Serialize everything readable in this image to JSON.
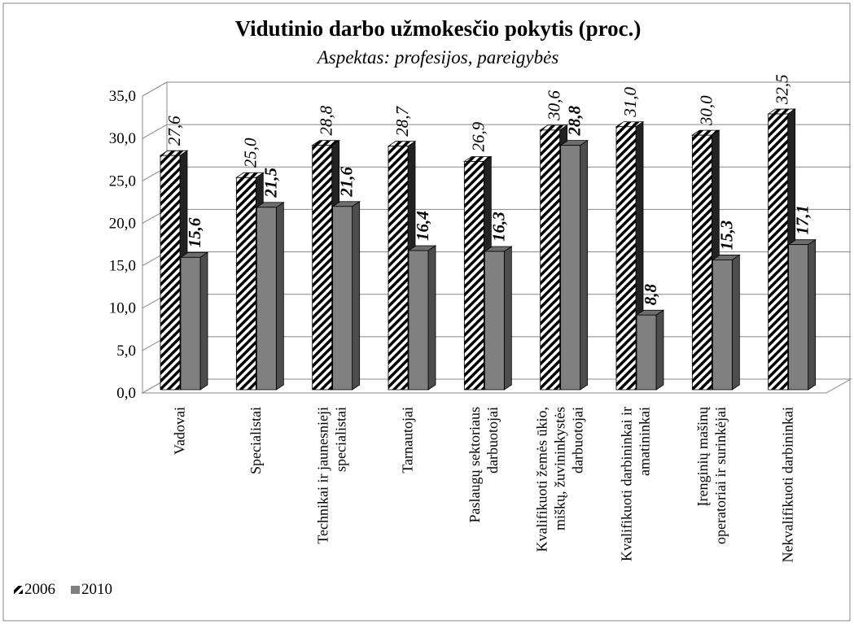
{
  "chart_data": {
    "type": "bar3d",
    "title": "Vidutinio darbo užmokesčio pokytis (proc.)",
    "subtitle": "Aspektas: profesijos, pareigybės",
    "categories": [
      [
        "Vadovai"
      ],
      [
        "Specialistai"
      ],
      [
        "Technikai ir jaunesnieji",
        "specialistai"
      ],
      [
        "Tarnautojai"
      ],
      [
        "Paslaugų sektoriaus",
        "darbuotojai"
      ],
      [
        "Kvalifikuoti žemės ūkio,",
        "miškų, žuvininkystės",
        "darbuotojai"
      ],
      [
        "Kvalifikuoti darbininkai ir",
        "amatininkai"
      ],
      [
        "Įrenginių mašinų",
        "operatoriai ir surinkėjai"
      ],
      [
        "Nekvalifikuoti darbininkai"
      ]
    ],
    "series": [
      {
        "name": "2006",
        "color": "#000000",
        "hatch": true,
        "values": [
          27.6,
          25.0,
          28.8,
          28.7,
          26.9,
          30.6,
          31.0,
          30.0,
          32.5
        ],
        "value_labels": [
          "27,6",
          "25,0",
          "28,8",
          "28,7",
          "26,9",
          "30,6",
          "31,0",
          "30,0",
          "32,5"
        ]
      },
      {
        "name": "2010",
        "color": "#808080",
        "hatch": false,
        "values": [
          15.6,
          21.5,
          21.6,
          16.4,
          16.3,
          28.8,
          8.8,
          15.3,
          17.1
        ],
        "value_labels": [
          "15,6",
          "21,5",
          "21,6",
          "16,4",
          "16,3",
          "28,8",
          "8,8",
          "15,3",
          "17,1"
        ]
      }
    ],
    "ylim": [
      0,
      35
    ],
    "yticks": [
      {
        "value": 0,
        "label": "0,0"
      },
      {
        "value": 5,
        "label": "5,0"
      },
      {
        "value": 10,
        "label": "10,0"
      },
      {
        "value": 15,
        "label": "15,0"
      },
      {
        "value": 20,
        "label": "20,0"
      },
      {
        "value": 25,
        "label": "25,0"
      },
      {
        "value": 30,
        "label": "30,0"
      },
      {
        "value": 35,
        "label": "35,0"
      }
    ],
    "grid": true,
    "legend": "bottom-left"
  }
}
